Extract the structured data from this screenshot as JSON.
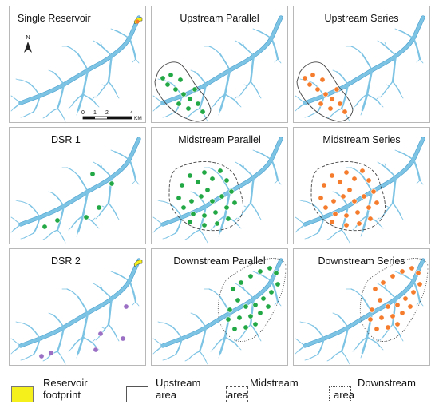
{
  "panels": [
    {
      "title": "Single Reservoir",
      "variant": "single"
    },
    {
      "title": "Upstream Parallel",
      "variant": "up-par"
    },
    {
      "title": "Upstream Series",
      "variant": "up-ser"
    },
    {
      "title": "DSR 1",
      "variant": "dsr1"
    },
    {
      "title": "Midstream Parallel",
      "variant": "mid-par"
    },
    {
      "title": "Midstream Series",
      "variant": "mid-ser"
    },
    {
      "title": "DSR 2",
      "variant": "dsr2"
    },
    {
      "title": "Downstream Parallel",
      "variant": "down-par"
    },
    {
      "title": "Downstream Series",
      "variant": "down-ser"
    }
  ],
  "north_label": "N",
  "scale_bar": {
    "ticks": [
      "0",
      "1",
      "2",
      "4"
    ],
    "unit": "KM"
  },
  "legend": {
    "reservoir": {
      "line1": "Reservoir",
      "line2": "footprint"
    },
    "upstream": {
      "line1": "Upstream",
      "line2": "area"
    },
    "midstream": {
      "line1": "Midstream",
      "line2": "area"
    },
    "downstream": {
      "line1": "Downstream",
      "line2": "area"
    }
  },
  "colors": {
    "river": "#7cc3e4",
    "river_outline": "#4a9fce",
    "parallel_dot": "#22a845",
    "series_dot": "#f47c2c",
    "dsr2_dot": "#9a6fc4",
    "reservoir": "#f5ef1c",
    "outline": "#444444"
  }
}
